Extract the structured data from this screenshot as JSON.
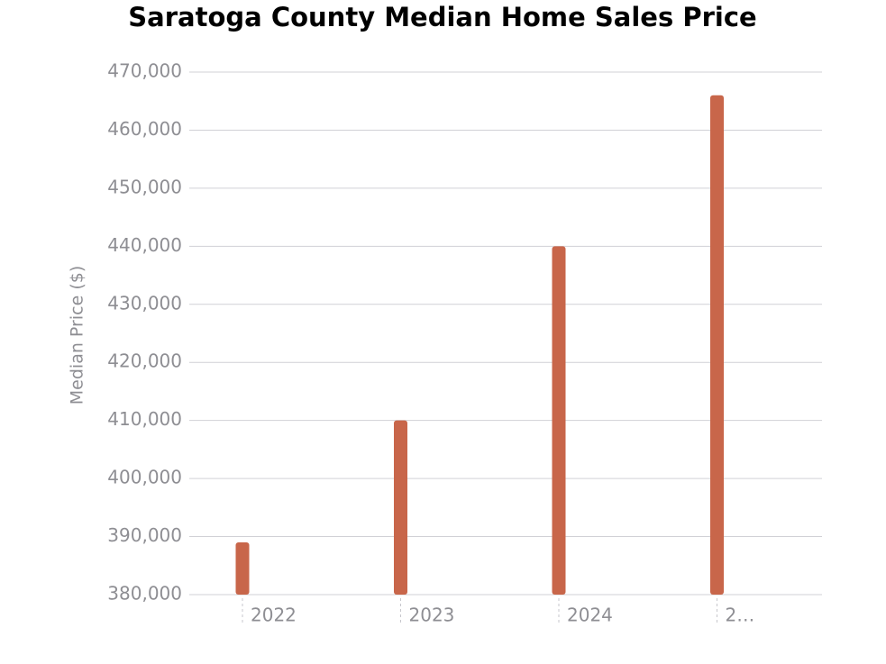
{
  "chart_data": {
    "type": "bar",
    "title": "Saratoga County Median Home Sales Price",
    "y_label": "Median Price ($)",
    "categories": [
      "2022",
      "2023",
      "2024",
      "2…"
    ],
    "values": [
      389000,
      410000,
      440000,
      466000
    ],
    "color": "#c8664a",
    "ylim": [
      380000,
      470000
    ],
    "yticks": [
      {
        "value": 380000,
        "label": "380,000"
      },
      {
        "value": 390000,
        "label": "390,000"
      },
      {
        "value": 400000,
        "label": "400,000"
      },
      {
        "value": 410000,
        "label": "410,000"
      },
      {
        "value": 420000,
        "label": "420,000"
      },
      {
        "value": 430000,
        "label": "430,000"
      },
      {
        "value": 440000,
        "label": "440,000"
      },
      {
        "value": 450000,
        "label": "450,000"
      },
      {
        "value": 460000,
        "label": "460,000"
      },
      {
        "value": 470000,
        "label": "470,000"
      }
    ],
    "grid": true
  }
}
